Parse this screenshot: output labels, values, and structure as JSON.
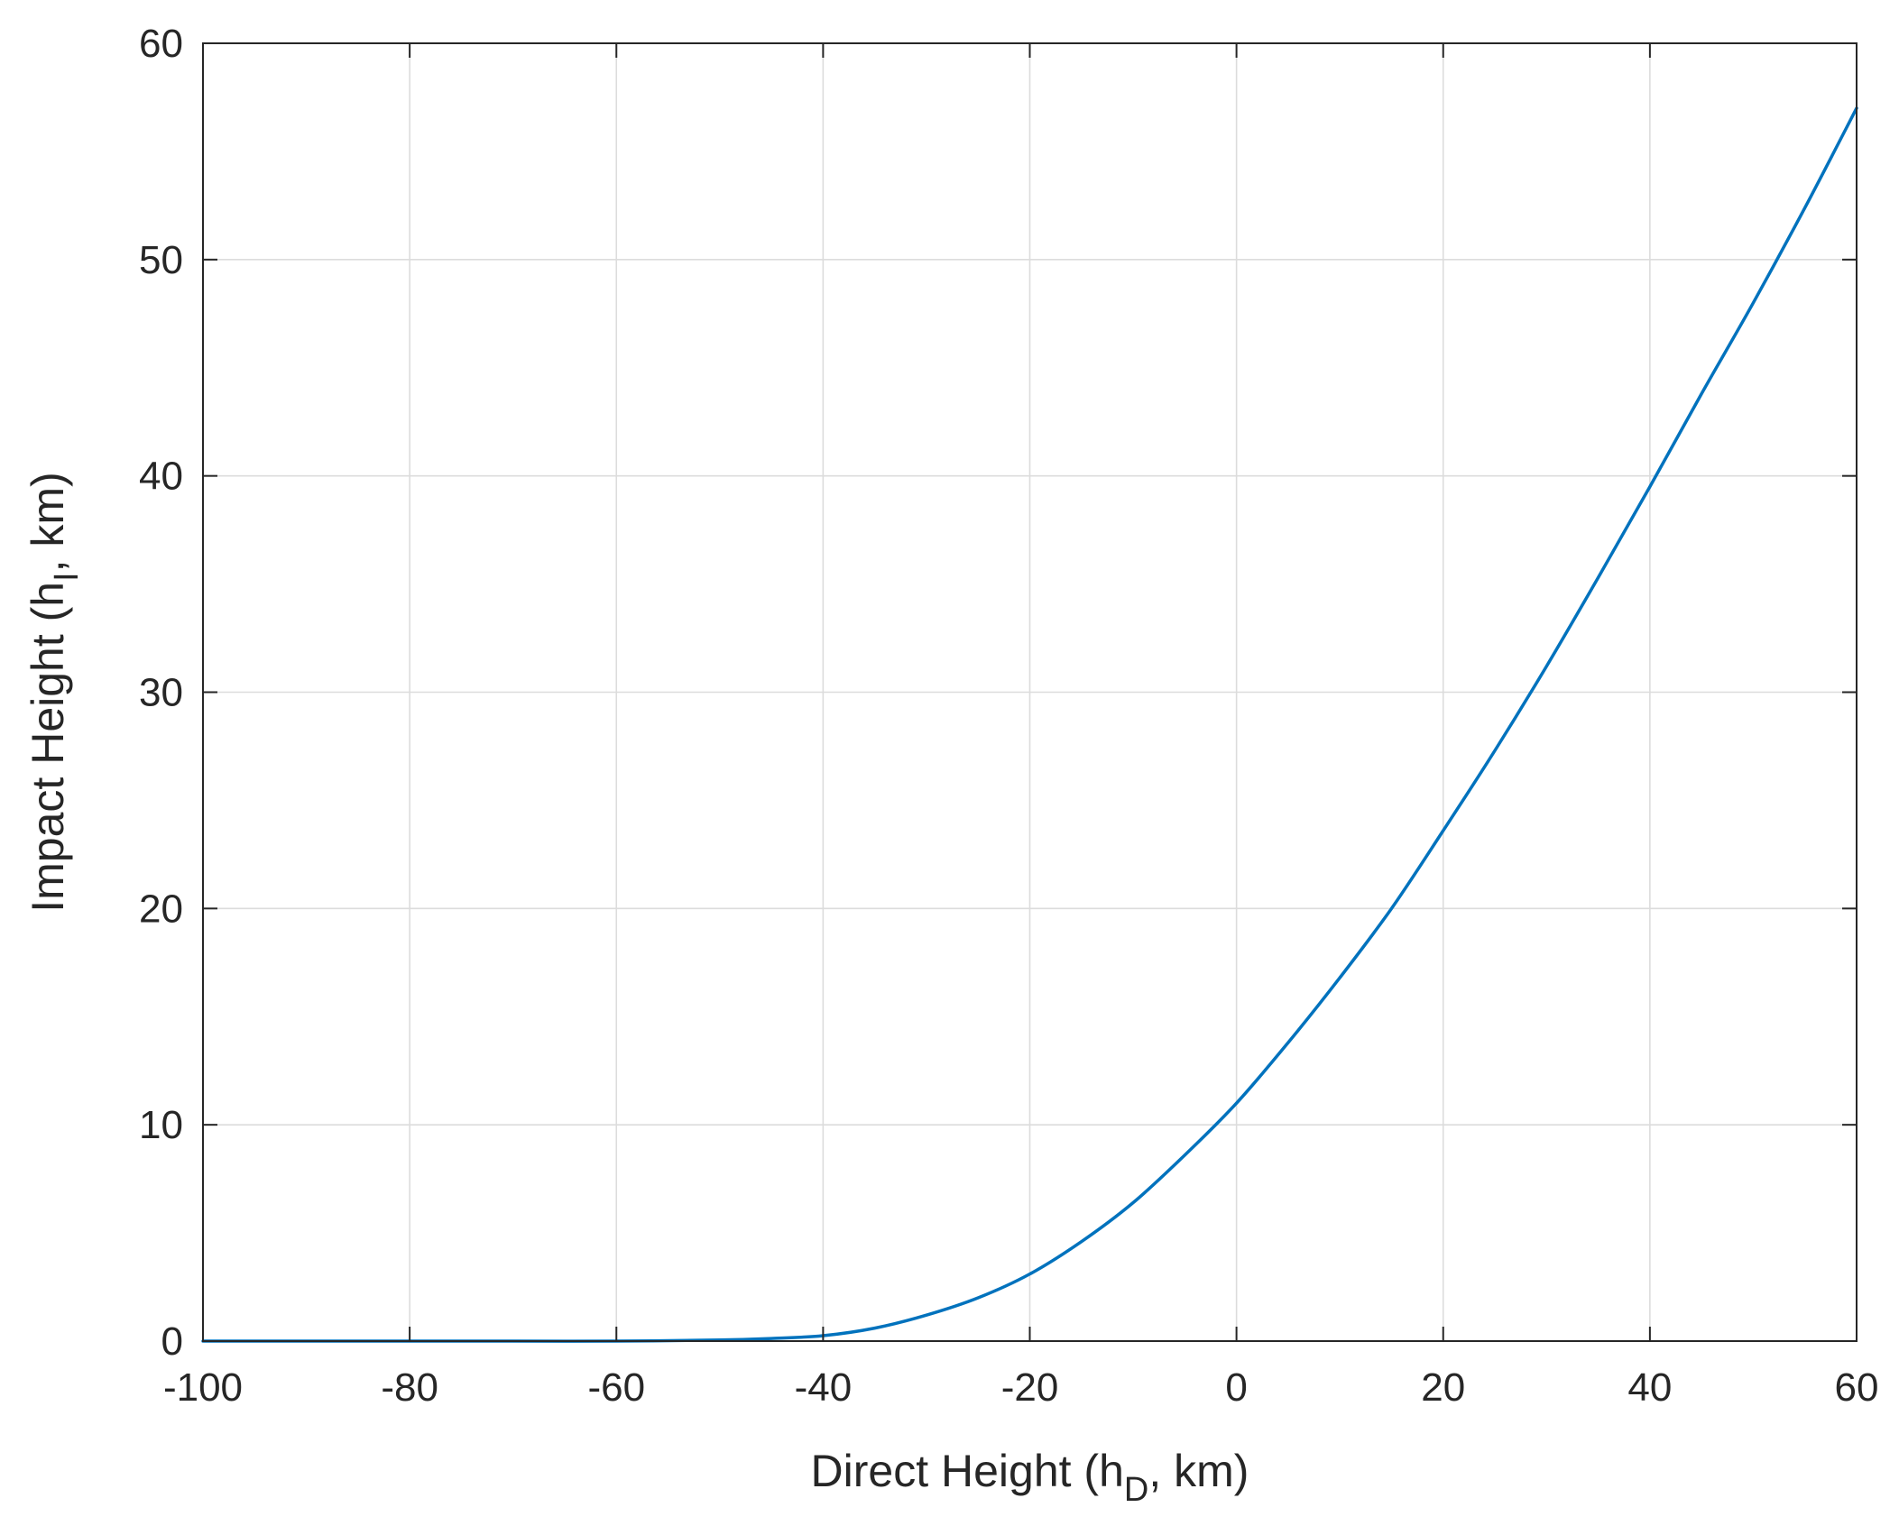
{
  "chart_data": {
    "type": "line",
    "title": "",
    "xlabel": {
      "main": "Direct Height (h",
      "subscript": "D",
      "suffix": ", km)"
    },
    "ylabel": {
      "main": "Impact Height (h",
      "subscript": "I",
      "suffix": ", km)"
    },
    "xlim": [
      -100,
      60
    ],
    "ylim": [
      0,
      60
    ],
    "xticks": [
      -100,
      -80,
      -60,
      -40,
      -20,
      0,
      20,
      40,
      60
    ],
    "yticks": [
      0,
      10,
      20,
      30,
      40,
      50,
      60
    ],
    "xtick_labels": [
      "-100",
      "-80",
      "-60",
      "-40",
      "-20",
      "0",
      "20",
      "40",
      "60"
    ],
    "ytick_labels": [
      "0",
      "10",
      "20",
      "30",
      "40",
      "50",
      "60"
    ],
    "grid": true,
    "series": [
      {
        "color": "#0072BD",
        "x": [
          -100,
          -90,
          -80,
          -70,
          -60,
          -50,
          -45,
          -40,
          -35,
          -30,
          -25,
          -20,
          -15,
          -10,
          -5,
          0,
          5,
          10,
          15,
          20,
          25,
          30,
          35,
          40,
          45,
          50,
          55,
          60
        ],
        "y": [
          0,
          0,
          0,
          0,
          0,
          0.05,
          0.12,
          0.25,
          0.6,
          1.2,
          2.0,
          3.1,
          4.6,
          6.4,
          8.6,
          11.0,
          13.8,
          16.8,
          20.0,
          23.6,
          27.3,
          31.2,
          35.3,
          39.5,
          43.8,
          48.0,
          52.4,
          57.0
        ]
      }
    ]
  }
}
